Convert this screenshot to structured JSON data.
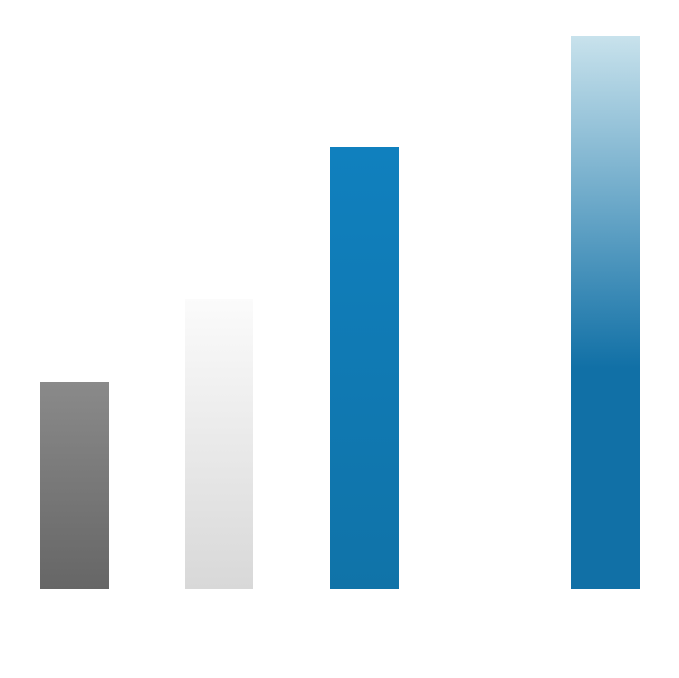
{
  "chart_data": {
    "type": "bar",
    "values": [
      229,
      321,
      489,
      611
    ],
    "colors": [
      [
        "#8a8a8a",
        "#666666"
      ],
      [
        "#fbfbfb",
        "#d8d8d8"
      ],
      [
        "#1080be",
        "#1073a8"
      ],
      [
        "#c8e2ec",
        "#1170a6"
      ]
    ]
  }
}
